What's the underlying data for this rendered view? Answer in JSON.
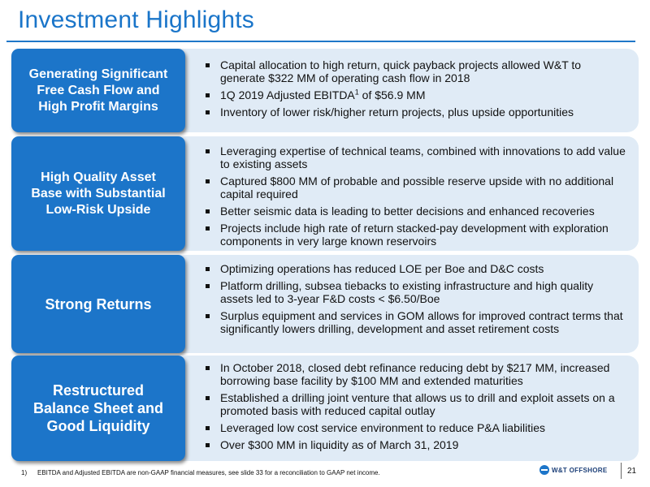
{
  "title": "Investment Highlights",
  "sections": [
    {
      "label": "Generating Significant\nFree Cash Flow and\nHigh Profit Margins",
      "bullets": [
        "Capital allocation to high return, quick payback projects allowed W&T to generate $322 MM of operating cash flow in 2018",
        {
          "pre": "1Q 2019 Adjusted EBITDA",
          "sup": "1",
          "post": " of $56.9 MM"
        },
        "Inventory of lower risk/higher return projects, plus upside opportunities"
      ]
    },
    {
      "label": "High Quality Asset\nBase with Substantial\nLow-Risk Upside",
      "bullets": [
        "Leveraging expertise of technical teams, combined with innovations to add value to existing assets",
        "Captured $800 MM of probable and possible reserve upside with no additional capital required",
        "Better seismic data is leading to better decisions and enhanced recoveries",
        "Projects include high rate of return stacked-pay development with exploration components in very large known reservoirs"
      ]
    },
    {
      "label": "Strong Returns",
      "bullets": [
        "Optimizing operations has reduced LOE per Boe and D&C costs",
        "Platform drilling, subsea tiebacks to existing infrastructure and high quality assets led to 3-year F&D costs < $6.50/Boe",
        "Surplus equipment and services in GOM allows for improved contract terms that significantly lowers drilling, development and asset retirement costs"
      ]
    },
    {
      "label": "Restructured\nBalance Sheet and\nGood Liquidity",
      "bullets": [
        "In October 2018, closed debt refinance reducing debt by $217 MM, increased borrowing base facility by $100 MM and extended maturities",
        "Established a drilling joint venture that allows us to drill and exploit assets on a promoted basis with reduced capital outlay",
        "Leveraged low cost service environment to reduce P&A liabilities",
        "Over $300 MM in liquidity as of March 31, 2019"
      ]
    }
  ],
  "footnote": {
    "number": "1)",
    "text": "EBITDA and Adjusted EBITDA are non-GAAP financial measures, see slide 33 for a reconciliation to GAAP net income."
  },
  "logo_text": "W&T OFFSHORE",
  "page_number": "21",
  "colors": {
    "accent": "#1c75c9",
    "panel": "#e0ebf6",
    "title": "#1a75c9"
  }
}
